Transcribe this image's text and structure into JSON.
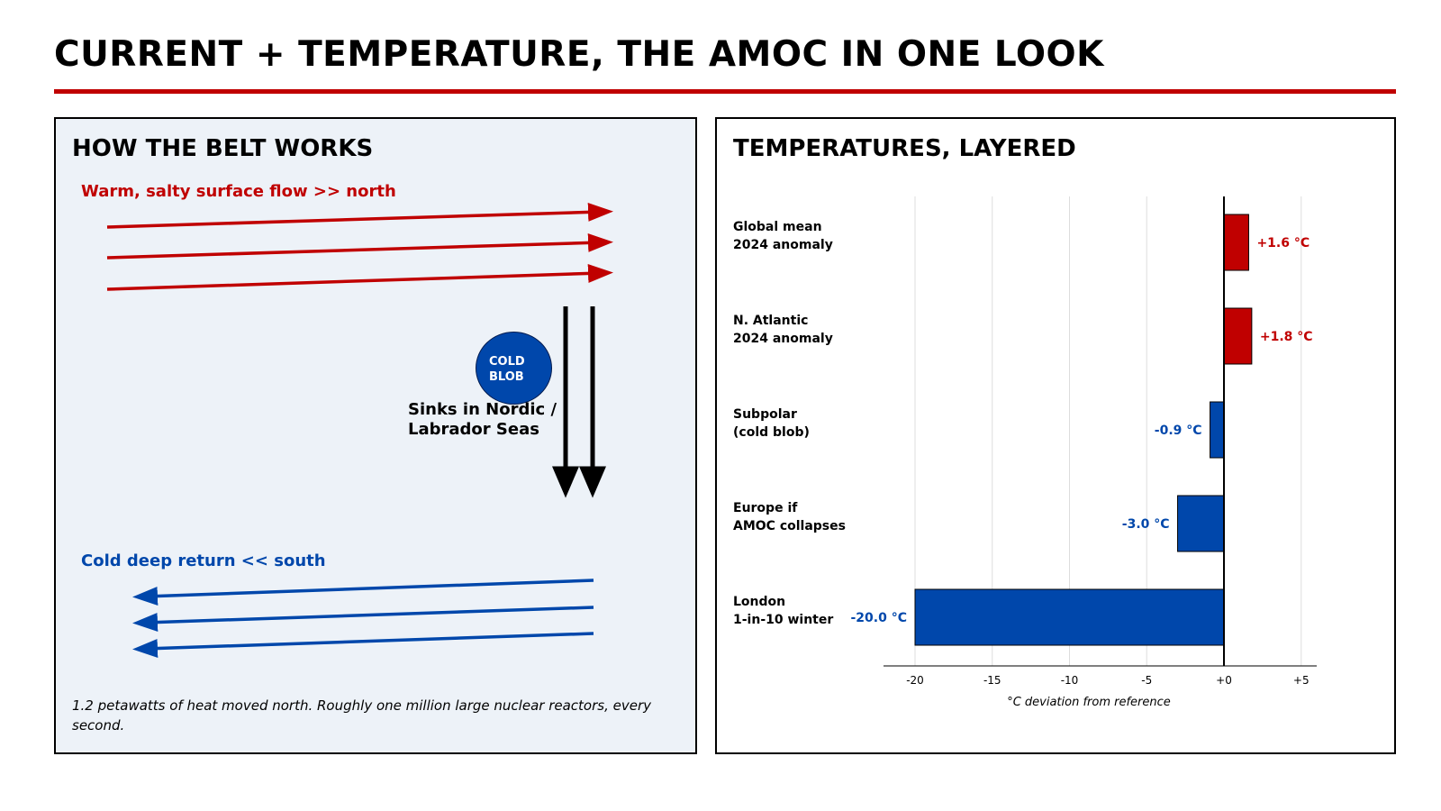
{
  "page": {
    "title": "CURRENT + TEMPERATURE, THE AMOC IN ONE LOOK"
  },
  "colors": {
    "warm": "#c00000",
    "cold": "#0047ab",
    "panel_bg": "#edf2f8"
  },
  "left_panel": {
    "title": "HOW THE BELT WORKS",
    "warm_label": "Warm, salty surface flow  >>  north",
    "cold_label": "Cold deep return  <<  south",
    "blob_label": "COLD\nBLOB",
    "sink_label": "Sinks in Nordic /\nLabrador Seas",
    "footnote": "1.2 petawatts of heat moved north. Roughly one million large nuclear reactors, every second."
  },
  "right_panel": {
    "title": "TEMPERATURES, LAYERED"
  },
  "chart_data": {
    "type": "bar",
    "orientation": "horizontal",
    "categories": [
      "Global mean\n2024 anomaly",
      "N. Atlantic\n2024 anomaly",
      "Subpolar\n(cold blob)",
      "Europe if\nAMOC collapses",
      "London\n1-in-10 winter"
    ],
    "values": [
      1.6,
      1.8,
      -0.9,
      -3.0,
      -20.0
    ],
    "value_labels": [
      "+1.6 °C",
      "+1.8 °C",
      "-0.9 °C",
      "-3.0 °C",
      "-20.0 °C"
    ],
    "xlabel": "°C deviation from reference",
    "xlim": [
      -22,
      6
    ],
    "xticks": [
      -20,
      -15,
      -10,
      -5,
      0,
      5
    ],
    "xtick_labels": [
      "-20",
      "-15",
      "-10",
      "-5",
      "+0",
      "+5"
    ],
    "grid": true,
    "positive_color": "#c00000",
    "negative_color": "#0047ab"
  }
}
